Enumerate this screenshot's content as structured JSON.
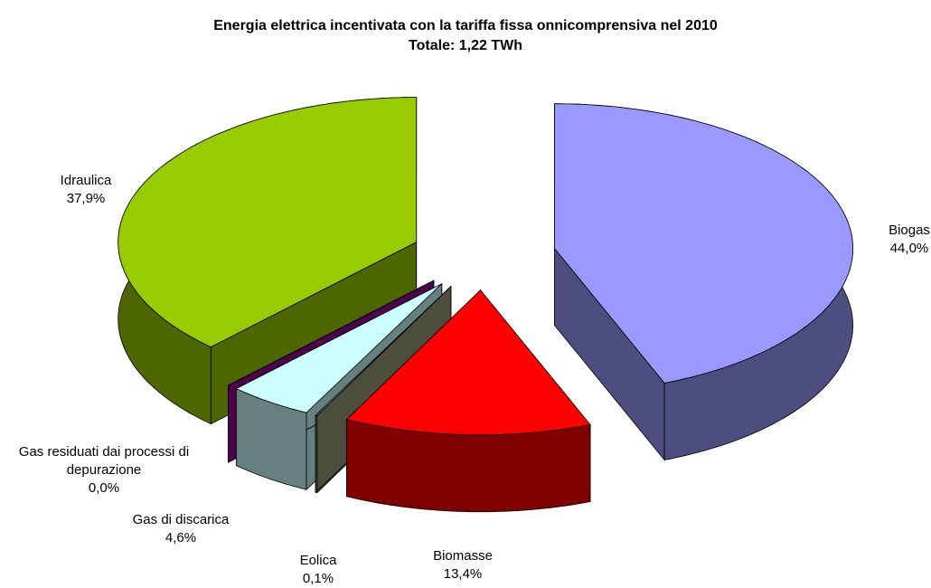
{
  "chart_data": {
    "type": "pie3d",
    "title": "Energia elettrica incentivata con la tariffa fissa onnicomprensiva nel 2010",
    "subtitle": "Totale: 1,22 TWh",
    "categories": [
      "Biogas",
      "Biomasse",
      "Eolica",
      "Gas di discarica",
      "Gas residuati dai processi di depurazione",
      "Idraulica"
    ],
    "values": [
      44.0,
      13.4,
      0.1,
      4.6,
      0.0,
      37.9
    ],
    "value_labels": [
      "44,0%",
      "13,4%",
      "0,1%",
      "4,6%",
      "0,0%",
      "37,9%"
    ],
    "colors": [
      "#9999ff",
      "#ff0000",
      "#9a9a78",
      "#ccffff",
      "#990099",
      "#99cc00"
    ],
    "exploded": true
  }
}
